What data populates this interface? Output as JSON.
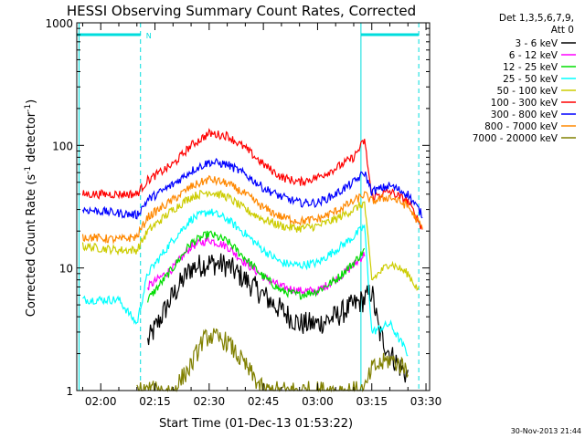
{
  "chart_data": {
    "type": "line",
    "title": "HESSI Observing Summary Count Rates, Corrected",
    "xlabel": "Start Time (01-Dec-13 01:53:22)",
    "ylabel_main": "Corrected Count Rate (s",
    "ylabel_sup1": "-1",
    "ylabel_mid": " detector",
    "ylabel_sup2": "-1",
    "ylabel_end": ")",
    "y_scale": "log",
    "xlim": [
      "01:53:22",
      "03:31:00"
    ],
    "ylim": [
      1,
      1000
    ],
    "x_ticks": [
      "02:00",
      "02:15",
      "02:30",
      "02:45",
      "03:00",
      "03:15",
      "03:30"
    ],
    "y_ticks": [
      "1",
      "10",
      "100",
      "1000"
    ],
    "legend_header": [
      "Det 1,3,5,6,7,9,",
      "Att 0"
    ],
    "legend_position": "right",
    "timestamp": "30-Nov-2013 21:44",
    "night_marker_label": "N",
    "series": [
      {
        "name": "3 - 6 keV",
        "color": "#000000",
        "x": [
          "02:13",
          "02:20",
          "02:25",
          "02:30",
          "02:35",
          "02:40",
          "02:45",
          "02:50",
          "02:55",
          "03:00",
          "03:05",
          "03:10",
          "03:13",
          "03:15",
          "03:17",
          "03:20",
          "03:25"
        ],
        "values": [
          2.5,
          6,
          10,
          11,
          10.5,
          8,
          6,
          4.5,
          3.5,
          3.5,
          4,
          5,
          5.5,
          6.5,
          3,
          2,
          1.3
        ]
      },
      {
        "name": "6 - 12 keV",
        "color": "#ff00ff",
        "x": [
          "02:13",
          "02:20",
          "02:25",
          "02:30",
          "02:35",
          "02:40",
          "02:45",
          "02:50",
          "02:55",
          "03:00",
          "03:05",
          "03:10",
          "03:13"
        ],
        "values": [
          7,
          10,
          15,
          17,
          15,
          11,
          8.5,
          7,
          6.5,
          6.5,
          8,
          10.5,
          13
        ]
      },
      {
        "name": "12 - 25 keV",
        "color": "#00dd00",
        "x": [
          "02:13",
          "02:20",
          "02:25",
          "02:30",
          "02:35",
          "02:40",
          "02:45",
          "02:50",
          "02:55",
          "03:00",
          "03:05",
          "03:10",
          "03:13"
        ],
        "values": [
          5.5,
          10,
          16,
          19,
          16.5,
          12,
          8.5,
          6.5,
          6,
          6.5,
          8,
          11,
          14
        ]
      },
      {
        "name": "25 - 50 keV",
        "color": "#00ffff",
        "x": [
          "01:55",
          "02:05",
          "02:10",
          "02:13",
          "02:20",
          "02:25",
          "02:30",
          "02:35",
          "02:40",
          "02:45",
          "02:50",
          "02:55",
          "03:00",
          "03:05",
          "03:10",
          "03:13",
          "03:15",
          "03:20",
          "03:25"
        ],
        "values": [
          5.5,
          5.5,
          3.5,
          9,
          17,
          25,
          29,
          25,
          19,
          14,
          11,
          10.5,
          11,
          14,
          18,
          22,
          3,
          3.5,
          2
        ]
      },
      {
        "name": "50 - 100 keV",
        "color": "#cccc00",
        "x": [
          "01:55",
          "02:05",
          "02:10",
          "02:13",
          "02:20",
          "02:25",
          "02:30",
          "02:35",
          "02:40",
          "02:45",
          "02:50",
          "02:55",
          "03:00",
          "03:05",
          "03:10",
          "03:13",
          "03:15",
          "03:20",
          "03:25",
          "03:28"
        ],
        "values": [
          15,
          14,
          14,
          20,
          30,
          38,
          42,
          38,
          30,
          25,
          22,
          21,
          22,
          25,
          30,
          34,
          8,
          11,
          9,
          6.5
        ]
      },
      {
        "name": "100 - 300 keV",
        "color": "#ff0000",
        "x": [
          "01:55",
          "02:05",
          "02:10",
          "02:13",
          "02:20",
          "02:25",
          "02:30",
          "02:35",
          "02:40",
          "02:45",
          "02:50",
          "02:55",
          "03:00",
          "03:05",
          "03:10",
          "03:13",
          "03:15",
          "03:20",
          "03:25",
          "03:29"
        ],
        "values": [
          40,
          40,
          40,
          52,
          70,
          100,
          125,
          120,
          95,
          70,
          55,
          50,
          55,
          65,
          80,
          110,
          38,
          42,
          35,
          21
        ]
      },
      {
        "name": "300 - 800 keV",
        "color": "#0000ff",
        "x": [
          "01:55",
          "02:05",
          "02:10",
          "02:13",
          "02:20",
          "02:25",
          "02:30",
          "02:35",
          "02:40",
          "02:45",
          "02:50",
          "02:55",
          "03:00",
          "03:05",
          "03:10",
          "03:13",
          "03:15",
          "03:20",
          "03:25",
          "03:29"
        ],
        "values": [
          30,
          28,
          27,
          36,
          48,
          62,
          73,
          70,
          58,
          45,
          38,
          34,
          34,
          40,
          50,
          60,
          42,
          47,
          40,
          27
        ]
      },
      {
        "name": "800 - 7000 keV",
        "color": "#ff8800",
        "x": [
          "01:55",
          "02:05",
          "02:10",
          "02:13",
          "02:20",
          "02:25",
          "02:30",
          "02:35",
          "02:40",
          "02:45",
          "02:50",
          "02:55",
          "03:00",
          "03:05",
          "03:10",
          "03:13",
          "03:15",
          "03:20",
          "03:25",
          "03:29"
        ],
        "values": [
          18,
          17,
          18,
          26,
          36,
          46,
          53,
          49,
          40,
          31,
          26,
          24,
          25,
          29,
          35,
          40,
          35,
          38,
          32,
          21
        ]
      },
      {
        "name": "7000 - 20000 keV",
        "color": "#808000",
        "x": [
          "02:10",
          "02:13",
          "02:20",
          "02:25",
          "02:28",
          "02:30",
          "02:35",
          "02:40",
          "02:45",
          "03:00",
          "03:13",
          "03:15",
          "03:20",
          "03:25"
        ],
        "values": [
          1,
          1,
          1,
          1.6,
          2.5,
          2.8,
          2.5,
          1.6,
          1,
          1,
          1,
          1.5,
          1.8,
          1.5
        ]
      }
    ],
    "annotations": {
      "night_bars": [
        [
          "01:53:22",
          "02:11"
        ],
        [
          "03:12",
          "03:28"
        ]
      ],
      "night_bar_level": 800,
      "cyan_verticals": [
        "01:54",
        "02:11",
        "03:12",
        "03:28"
      ],
      "cyan_verticals_dashed": [
        false,
        true,
        false,
        true
      ]
    }
  }
}
